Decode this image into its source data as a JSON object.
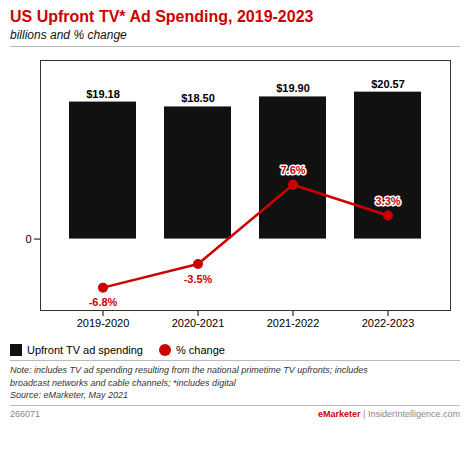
{
  "chart_data": {
    "type": "bar",
    "title": "US Upfront TV* Ad Spending, 2019-2023",
    "subtitle": "billions and % change",
    "categories": [
      "2019-2020",
      "2020-2021",
      "2021-2022",
      "2022-2023"
    ],
    "series": [
      {
        "name": "Upfront TV ad spending",
        "type": "bar",
        "color": "#111111",
        "values": [
          19.18,
          18.5,
          19.9,
          20.57
        ],
        "value_labels": [
          "$19.18",
          "$18.50",
          "$19.90",
          "$20.57"
        ]
      },
      {
        "name": "% change",
        "type": "line",
        "color": "#cc0000",
        "marker": "o",
        "values": [
          -6.8,
          -3.5,
          7.6,
          3.3
        ],
        "value_labels": [
          "-6.8%",
          "-3.5%",
          "7.6%",
          "3.3%"
        ]
      }
    ],
    "ylim": [
      -10,
      25
    ],
    "yticks": [
      0
    ],
    "grid": false,
    "legend": "bottom left",
    "data_labels": true,
    "annotations": [
      "Note: includes TV ad spending resulting from the national primetime TV upfronts; includes",
      "broadcast networks and cable channels; *includes digital",
      "Source: eMarketer, May 2021",
      "266071",
      "eMarketer",
      " | InsiderIntelligence.com"
    ]
  }
}
